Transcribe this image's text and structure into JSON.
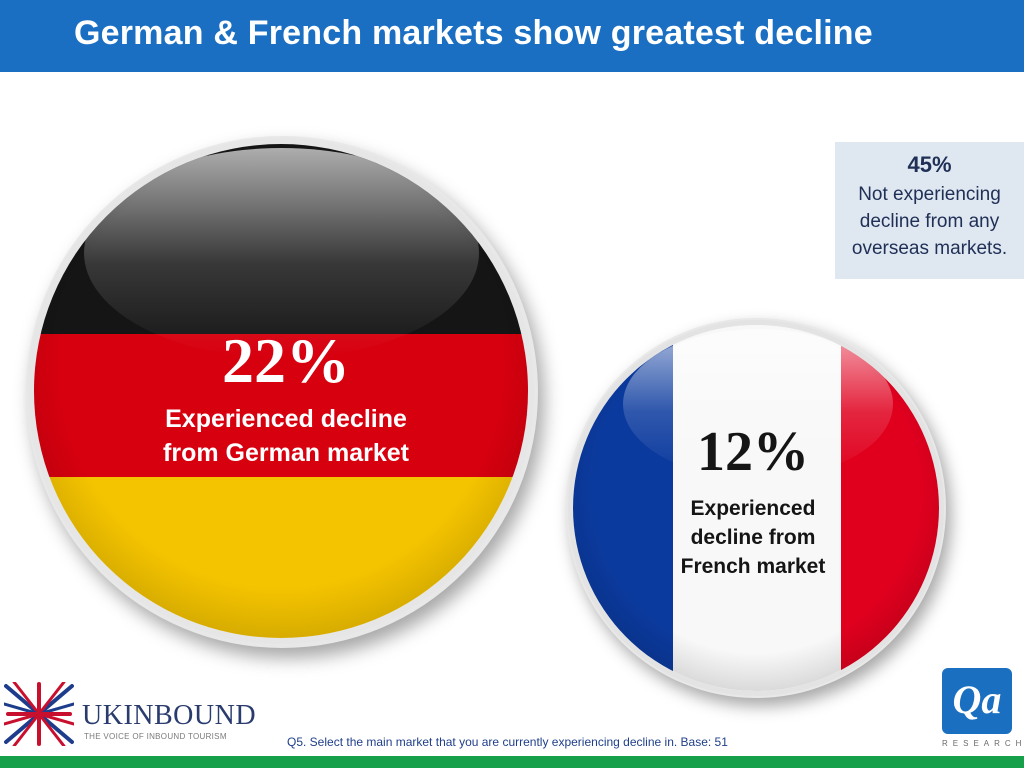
{
  "header": {
    "title": "German & French markets show greatest decline"
  },
  "info_box": {
    "percentage": "45%",
    "text": "Not experiencing decline from any overseas markets."
  },
  "german": {
    "percentage": "22%",
    "label_line1": "Experienced decline",
    "label_line2": "from German market"
  },
  "french": {
    "percentage": "12%",
    "label_line1": "Experienced",
    "label_line2": "decline from",
    "label_line3": "French market"
  },
  "footer": {
    "footnote": "Q5. Select the main market that you are currently experiencing decline in. Base: 51",
    "uk_logo_name": "UKINBOUND",
    "uk_logo_tagline": "THE VOICE OF INBOUND TOURISM",
    "qa_logo": "Qa",
    "qa_research": "RESEARCH"
  },
  "colors": {
    "header_bg": "#1a6fc2",
    "footer_bar": "#16a04a",
    "info_bg": "#dfe7f1"
  }
}
